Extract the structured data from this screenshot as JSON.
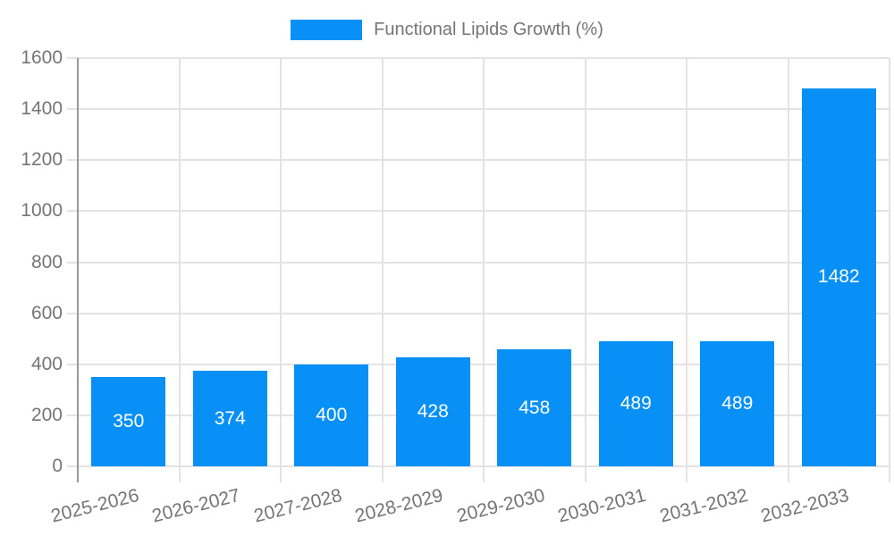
{
  "legend": {
    "label": "Functional Lipids Growth (%)"
  },
  "chart_data": {
    "type": "bar",
    "title": "Functional Lipids Growth (%)",
    "categories": [
      "2025-2026",
      "2026-2027",
      "2027-2028",
      "2028-2029",
      "2029-2030",
      "2030-2031",
      "2031-2032",
      "2032-2033"
    ],
    "values": [
      350,
      374,
      400,
      428,
      458,
      489,
      489,
      1482
    ],
    "bar_value_labels": [
      "350",
      "374",
      "400",
      "428",
      "458",
      "489",
      "489",
      "1482"
    ],
    "xlabel": "",
    "ylabel": "",
    "ylim": [
      0,
      1600
    ],
    "yticks": [
      0,
      200,
      400,
      600,
      800,
      1000,
      1200,
      1400,
      1600
    ],
    "grid": true,
    "legend_position": "top-center",
    "colors": {
      "bar": "#0990f7",
      "grid": "#e3e3e3",
      "axis": "#999999",
      "tick_text": "#757575",
      "value_text": "#ffffff",
      "background": "#ffffff"
    }
  }
}
